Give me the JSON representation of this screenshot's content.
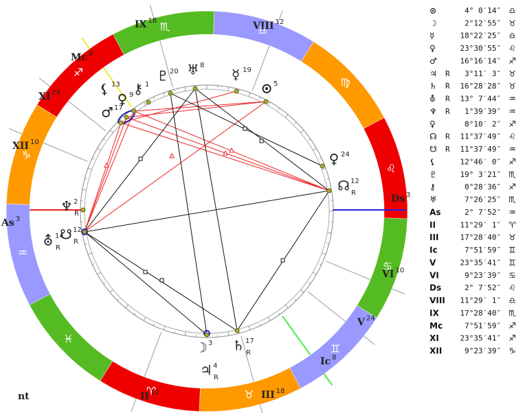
{
  "wheel": {
    "signs": [
      "♈",
      "♉",
      "♊",
      "♋",
      "♌",
      "♍",
      "♎",
      "♏",
      "♐",
      "♑",
      "♒",
      "♓"
    ]
  },
  "houses": [
    {
      "label": "IX",
      "degree": "18"
    },
    {
      "label": "VIII",
      "degree": "12"
    },
    {
      "label": "Mc",
      "degree": "8"
    },
    {
      "label": "XI",
      "degree": "24"
    },
    {
      "label": "XII",
      "degree": "10"
    },
    {
      "label": "As",
      "degree": "3"
    },
    {
      "label": "II",
      "degree": "12"
    },
    {
      "label": "III",
      "degree": "18"
    },
    {
      "label": "Ic",
      "degree": "8"
    },
    {
      "label": "V",
      "degree": "24"
    },
    {
      "label": "VI",
      "degree": "10"
    },
    {
      "label": "Ds",
      "degree": "3"
    }
  ],
  "planets": [
    {
      "glyph": "⊙",
      "degree": "5"
    },
    {
      "glyph": "☿",
      "degree": "19"
    },
    {
      "glyph": "♅",
      "degree": "8"
    },
    {
      "glyph": "♇",
      "degree": "20"
    },
    {
      "glyph": "⚷",
      "degree": "1"
    },
    {
      "glyph": "♀",
      "degree": "9"
    },
    {
      "glyph": "⚸",
      "degree": "13"
    },
    {
      "glyph": "♂",
      "degree": "17"
    },
    {
      "glyph": "♀",
      "degree": "24"
    },
    {
      "glyph": "☊",
      "degree": "12",
      "retro": "R"
    },
    {
      "glyph": "♆",
      "degree": "2",
      "retro": "R"
    },
    {
      "glyph": "☋",
      "degree": "12",
      "retro": "R"
    },
    {
      "glyph": "⛢",
      "degree": "14",
      "retro": "R"
    },
    {
      "glyph": "☽",
      "degree": "3"
    },
    {
      "glyph": "♄",
      "degree": "17",
      "retro": "R"
    },
    {
      "glyph": "♃",
      "degree": "4",
      "retro": "R"
    }
  ],
  "table": {
    "rows": [
      {
        "glyph": "⊙",
        "position": "4° 0′14″",
        "sign": "♎"
      },
      {
        "glyph": "☽",
        "position": "2°12′55″",
        "sign": "♉"
      },
      {
        "glyph": "☿",
        "position": "18°22′25″",
        "sign": "♎"
      },
      {
        "glyph": "♀",
        "position": "23°30′55″",
        "sign": "♌"
      },
      {
        "glyph": "♂",
        "position": "16°16′14″",
        "sign": "♐"
      },
      {
        "glyph": "♃",
        "retro": "R",
        "position": "3°11′ 3″",
        "sign": "♉"
      },
      {
        "glyph": "♄",
        "retro": "R",
        "position": "16°28′28″",
        "sign": "♉"
      },
      {
        "glyph": "⛢",
        "retro": "R",
        "position": "13° 7′44″",
        "sign": "♒"
      },
      {
        "glyph": "♆",
        "retro": "R",
        "position": "1°39′39″",
        "sign": "♒"
      },
      {
        "glyph": "♀",
        "position": "8°10′ 2″",
        "sign": "♐"
      },
      {
        "glyph": "☊",
        "retro": "R",
        "position": "11°37′49″",
        "sign": "♌"
      },
      {
        "glyph": "☋",
        "retro": "R",
        "position": "11°37′49″",
        "sign": "♒"
      },
      {
        "glyph": "⚸",
        "position": "12°46′ 0″",
        "sign": "♐"
      },
      {
        "glyph": "♇",
        "position": "19° 3′21″",
        "sign": "♏"
      },
      {
        "glyph": "⚷",
        "position": "0°28′36″",
        "sign": "♐"
      },
      {
        "glyph": "♅",
        "position": "7°26′25″",
        "sign": "♏"
      },
      {
        "glyph": "As",
        "position": "2° 7′52″",
        "sign": "♒"
      },
      {
        "glyph": "II",
        "position": "11°29′ 1″",
        "sign": "♈"
      },
      {
        "glyph": "III",
        "position": "17°28′40″",
        "sign": "♉"
      },
      {
        "glyph": "Ic",
        "position": "7°51′59″",
        "sign": "♊"
      },
      {
        "glyph": "V",
        "position": "23°35′41″",
        "sign": "♊"
      },
      {
        "glyph": "VI",
        "position": "9°23′39″",
        "sign": "♋"
      },
      {
        "glyph": "Ds",
        "position": "2° 7′52″",
        "sign": "♌"
      },
      {
        "glyph": "VIII",
        "position": "11°29′ 1″",
        "sign": "♎"
      },
      {
        "glyph": "IX",
        "position": "17°28′40″",
        "sign": "♏"
      },
      {
        "glyph": "Mc",
        "position": "7°51′59″",
        "sign": "♐"
      },
      {
        "glyph": "XI",
        "position": "23°35′41″",
        "sign": "♐"
      },
      {
        "glyph": "XII",
        "position": "9°23′39″",
        "sign": "♑"
      }
    ]
  },
  "footer": "nt"
}
